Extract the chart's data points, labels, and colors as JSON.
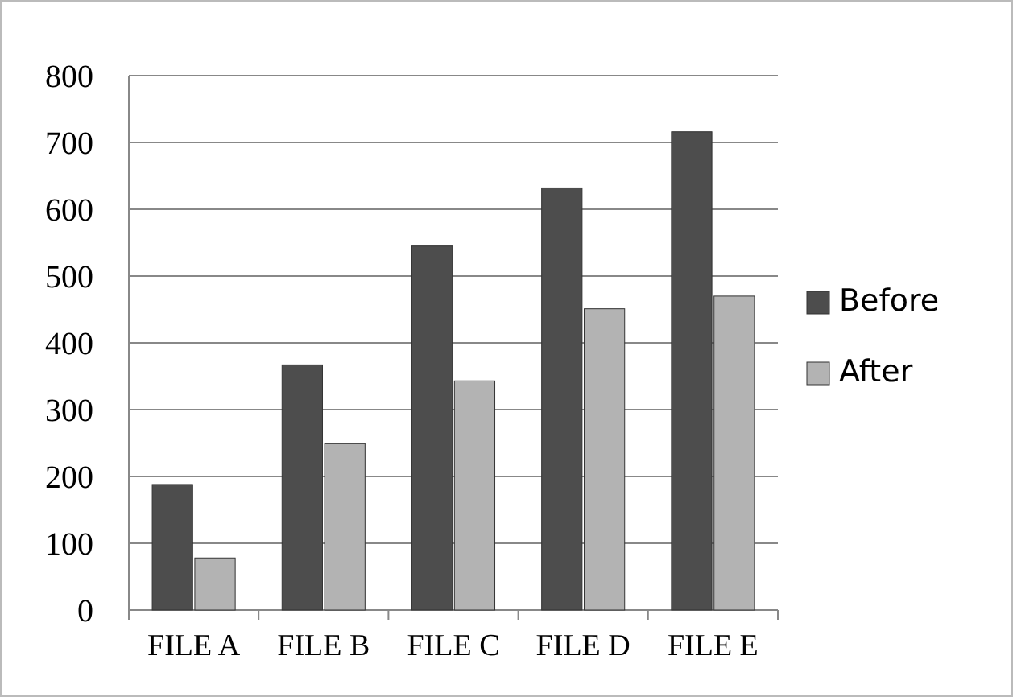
{
  "chart_data": {
    "type": "bar",
    "categories": [
      "FILE A",
      "FILE B",
      "FILE C",
      "FILE D",
      "FILE E"
    ],
    "series": [
      {
        "name": "Before",
        "color": "#4d4d4d",
        "values": [
          188,
          367,
          545,
          632,
          716
        ]
      },
      {
        "name": "After",
        "color": "#b3b3b3",
        "values": [
          78,
          249,
          343,
          451,
          470
        ]
      }
    ],
    "ylim": [
      0,
      800
    ],
    "yticks": [
      0,
      100,
      200,
      300,
      400,
      500,
      600,
      700,
      800
    ],
    "grid": "y",
    "legend": "right"
  }
}
